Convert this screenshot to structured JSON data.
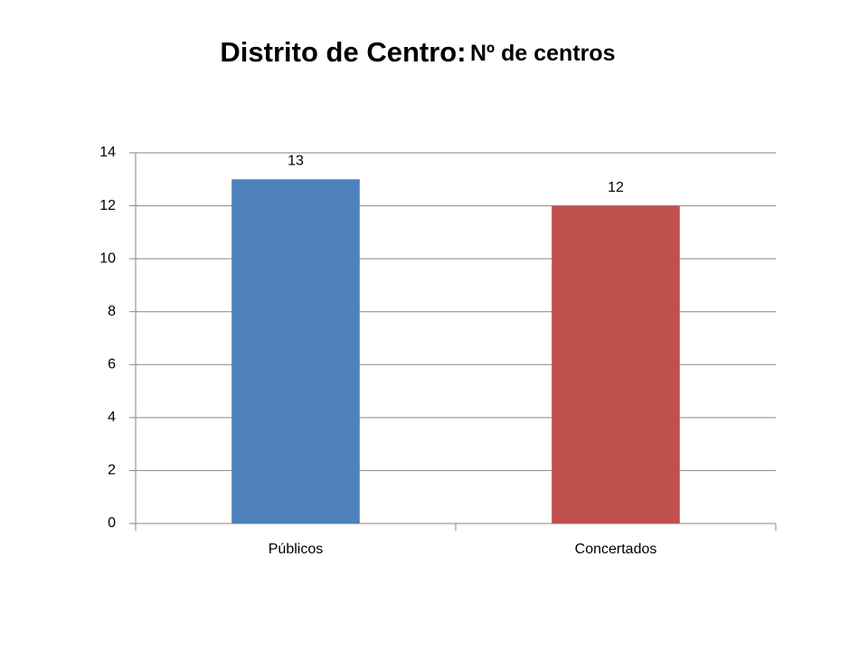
{
  "chart_data": {
    "type": "bar",
    "title": "Distrito de Centro:",
    "subtitle": "Nº de centros",
    "categories": [
      "Públicos",
      "Concertados"
    ],
    "values": [
      13,
      12
    ],
    "colors": [
      "#4f81bd",
      "#c0504d"
    ],
    "ylim": [
      0,
      14
    ],
    "yticks": [
      0,
      2,
      4,
      6,
      8,
      10,
      12,
      14
    ],
    "grid": true
  }
}
